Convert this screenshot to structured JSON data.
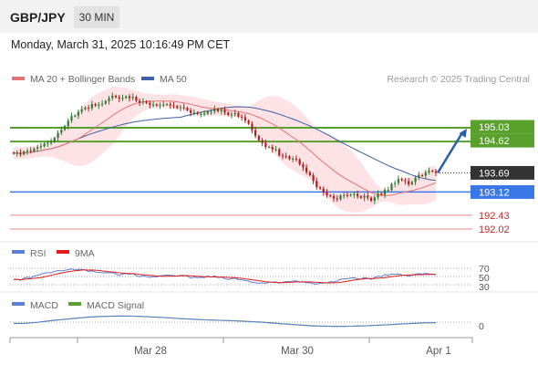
{
  "header": {
    "symbol": "GBP/JPY",
    "timeframe": "30 MIN",
    "datetime": "Monday, March 31, 2025 10:16:49 PM CET"
  },
  "legend": {
    "ma20_label": "MA 20 + Bollinger Bands",
    "ma50_label": "MA 50",
    "credit": "Research © 2025 Trading Central"
  },
  "colors": {
    "candle_up": "#2e7d32",
    "candle_down": "#b71c1c",
    "ma20": "#e57373",
    "ma50": "#3f5fa8",
    "bollinger_fill": "#fde3e5",
    "resistance": "#5aa02c",
    "pivot": "#3b78e7",
    "support": "#e88a8a",
    "arrow": "#2b5fa8",
    "rsi": "#5b7fd6",
    "rsi_ma": "#e31b1b",
    "macd": "#5b7fd6",
    "macd_signal": "#5aa02c"
  },
  "chart_data": {
    "type": "candlestick",
    "title": "GBP/JPY",
    "interval": "30 MIN",
    "x_tick_labels": [
      "Mar 28",
      "Mar 30",
      "Apr 1"
    ],
    "y_range": [
      191.8,
      196.2
    ],
    "price_levels": [
      {
        "label": "195.03",
        "value": 195.03,
        "role": "resistance"
      },
      {
        "label": "194.62",
        "value": 194.62,
        "role": "resistance"
      },
      {
        "label": "193.69",
        "value": 193.69,
        "role": "last-price"
      },
      {
        "label": "193.12",
        "value": 193.12,
        "role": "pivot"
      },
      {
        "label": "192.43",
        "value": 192.43,
        "role": "support"
      },
      {
        "label": "192.02",
        "value": 192.02,
        "role": "support"
      }
    ],
    "expected_target": 195.03,
    "close": [
      194.27,
      194.29,
      194.24,
      194.32,
      194.35,
      194.33,
      194.41,
      194.45,
      194.48,
      194.56,
      194.58,
      194.62,
      194.73,
      194.88,
      194.97,
      195.08,
      195.24,
      195.38,
      195.39,
      195.5,
      195.58,
      195.63,
      195.61,
      195.73,
      195.69,
      195.72,
      195.75,
      195.82,
      195.91,
      195.98,
      195.94,
      195.89,
      195.92,
      195.96,
      195.91,
      195.95,
      195.83,
      195.78,
      195.81,
      195.77,
      195.71,
      195.72,
      195.69,
      195.71,
      195.72,
      195.73,
      195.69,
      195.67,
      195.62,
      195.64,
      195.62,
      195.55,
      195.47,
      195.48,
      195.44,
      195.44,
      195.45,
      195.51,
      195.51,
      195.59,
      195.52,
      195.56,
      195.48,
      195.41,
      195.43,
      195.47,
      195.36,
      195.34,
      195.24,
      195.15,
      194.96,
      194.79,
      194.66,
      194.58,
      194.46,
      194.46,
      194.39,
      194.39,
      194.21,
      194.19,
      194.18,
      194.1,
      194.11,
      194.09,
      193.94,
      193.85,
      193.71,
      193.62,
      193.45,
      193.26,
      193.22,
      193.11,
      193.02,
      193.0,
      192.93,
      192.9,
      193.02,
      193.03,
      193.02,
      193.04,
      193.06,
      192.99,
      192.95,
      193.01,
      192.95,
      192.86,
      192.96,
      193.07,
      193.04,
      193.18,
      193.18,
      193.36,
      193.39,
      193.51,
      193.47,
      193.44,
      193.35,
      193.42,
      193.54,
      193.62,
      193.61,
      193.7,
      193.75,
      193.74,
      193.69
    ]
  },
  "rsi": {
    "label": "RSI",
    "ma_label": "9MA",
    "levels": [
      "70",
      "50",
      "30"
    ],
    "values": [
      42.5,
      43.6,
      40.7,
      45.9,
      48.2,
      46.8,
      50.8,
      52.9,
      55.4,
      58.5,
      59.1,
      59.0,
      62.6,
      64.4,
      63.6,
      64.8,
      66.5,
      68.4,
      65.7,
      67.2,
      67.2,
      65.6,
      61.9,
      64.0,
      60.8,
      60.2,
      58.8,
      59.4,
      58.8,
      59.5,
      56.6,
      52.3,
      56.3,
      57.1,
      55.3,
      57.5,
      51.6,
      49.5,
      52.1,
      49.6,
      47.8,
      49.7,
      48.8,
      51.6,
      52.5,
      53.5,
      52.8,
      52.4,
      50.6,
      52.6,
      52.8,
      50.6,
      46.3,
      48.3,
      47.4,
      48.1,
      47.4,
      51.5,
      48.4,
      51.7,
      47.6,
      48.4,
      44.9,
      42.5,
      44.7,
      46.2,
      42.3,
      42.1,
      40.1,
      39.2,
      35.8,
      34.6,
      33.5,
      34.7,
      33.2,
      36.2,
      36.3,
      37.0,
      33.8,
      36.0,
      37.7,
      37.4,
      38.6,
      39.6,
      36.3,
      36.9,
      34.6,
      35.2,
      32.5,
      31.4,
      34.1,
      34.0,
      34.4,
      37.5,
      36.8,
      38.7,
      43.6,
      44.2,
      44.7,
      45.9,
      47.1,
      44.3,
      43.8,
      47.4,
      45.5,
      42.8,
      47.3,
      51.2,
      49.2,
      54.6,
      52.6,
      56.5,
      54.8,
      56.3,
      53.5,
      53.2,
      50.6,
      53.0,
      56.0,
      57.4,
      55.5,
      57.8,
      56.3,
      56.0,
      54.3
    ]
  },
  "macd": {
    "label": "MACD",
    "signal_label": "MACD Signal",
    "zero_label": "0",
    "values": [
      -0.097,
      -0.097,
      -0.095,
      -0.087,
      -0.073,
      -0.058,
      -0.034,
      -0.011,
      0.022,
      0.05,
      0.074,
      0.104,
      0.13,
      0.155,
      0.176,
      0.198,
      0.221,
      0.246,
      0.266,
      0.287,
      0.308,
      0.33,
      0.35,
      0.361,
      0.375,
      0.389,
      0.391,
      0.398,
      0.407,
      0.41,
      0.417,
      0.417,
      0.416,
      0.414,
      0.417,
      0.408,
      0.402,
      0.397,
      0.378,
      0.37,
      0.359,
      0.346,
      0.338,
      0.327,
      0.31,
      0.3,
      0.287,
      0.264,
      0.253,
      0.244,
      0.235,
      0.219,
      0.212,
      0.198,
      0.187,
      0.176,
      0.164,
      0.151,
      0.145,
      0.137,
      0.129,
      0.122,
      0.111,
      0.105,
      0.093,
      0.086,
      0.073,
      0.061,
      0.05,
      0.037,
      0.028,
      0.015,
      -0.005,
      -0.019,
      -0.035,
      -0.055,
      -0.073,
      -0.086,
      -0.105,
      -0.125,
      -0.14,
      -0.155,
      -0.175,
      -0.19,
      -0.209,
      -0.226,
      -0.236,
      -0.254,
      -0.262,
      -0.27,
      -0.277,
      -0.286,
      -0.286,
      -0.288,
      -0.295,
      -0.295,
      -0.292,
      -0.292,
      -0.284,
      -0.28,
      -0.268,
      -0.261,
      -0.254,
      -0.249,
      -0.243,
      -0.229,
      -0.219,
      -0.209,
      -0.202,
      -0.188,
      -0.175,
      -0.161,
      -0.145,
      -0.136,
      -0.12,
      -0.107,
      -0.097,
      -0.081,
      -0.071,
      -0.062,
      -0.053,
      -0.05,
      -0.042,
      -0.035,
      -0.033
    ],
    "signal": [
      -0.085,
      -0.079,
      -0.075,
      -0.072,
      -0.064,
      -0.051,
      -0.033,
      -0.011,
      0.013,
      0.038,
      0.064,
      0.091,
      0.116,
      0.142,
      0.165,
      0.186,
      0.208,
      0.231,
      0.253,
      0.273,
      0.295,
      0.316,
      0.334,
      0.352,
      0.365,
      0.373,
      0.384,
      0.39,
      0.398,
      0.406,
      0.406,
      0.409,
      0.41,
      0.41,
      0.407,
      0.404,
      0.4,
      0.394,
      0.385,
      0.376,
      0.362,
      0.351,
      0.338,
      0.325,
      0.312,
      0.298,
      0.285,
      0.27,
      0.255,
      0.24,
      0.225,
      0.212,
      0.199,
      0.187,
      0.178,
      0.167,
      0.157,
      0.149,
      0.141,
      0.134,
      0.127,
      0.121,
      0.114,
      0.107,
      0.1,
      0.092,
      0.083,
      0.074,
      0.062,
      0.052,
      0.039,
      0.025,
      0.012,
      -0.003,
      -0.019,
      -0.034,
      -0.051,
      -0.068,
      -0.086,
      -0.104,
      -0.121,
      -0.138,
      -0.154,
      -0.173,
      -0.19,
      -0.205,
      -0.219,
      -0.231,
      -0.244,
      -0.254,
      -0.262,
      -0.271,
      -0.277,
      -0.283,
      -0.286,
      -0.29,
      -0.29,
      -0.289,
      -0.289,
      -0.283,
      -0.278,
      -0.271,
      -0.264,
      -0.256,
      -0.247,
      -0.236,
      -0.227,
      -0.216,
      -0.205,
      -0.193,
      -0.182,
      -0.168,
      -0.155,
      -0.142,
      -0.13,
      -0.118,
      -0.106,
      -0.097,
      -0.085,
      -0.075,
      -0.067,
      -0.058,
      -0.05,
      -0.045,
      -0.041
    ]
  }
}
